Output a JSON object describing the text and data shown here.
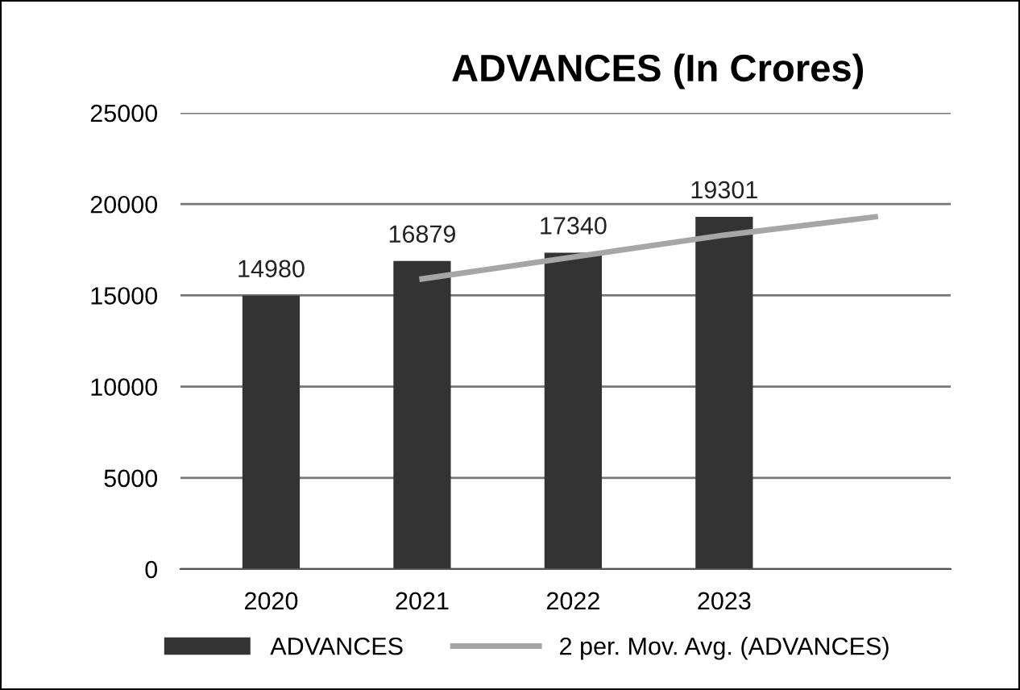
{
  "chart_data": {
    "type": "bar",
    "title": "ADVANCES (In Crores)",
    "categories": [
      "2020",
      "2021",
      "2022",
      "2023",
      null
    ],
    "series": [
      {
        "name": "ADVANCES",
        "color": "#333333",
        "values": [
          14980,
          16879,
          17340,
          19301,
          null
        ],
        "value_labels": [
          "14980",
          "16879",
          "17340",
          "19301",
          null
        ]
      },
      {
        "name": "2 per. Mov. Avg. (ADVANCES)",
        "type": "line",
        "color": "#a6a6a6",
        "values": [
          null,
          15900,
          17100,
          18300,
          19300
        ]
      }
    ],
    "ylim": [
      0,
      25000
    ],
    "yticks": [
      0,
      5000,
      10000,
      15000,
      20000,
      25000
    ],
    "grid": "y",
    "legend": "bottom",
    "marker": "none",
    "line_style": "solid"
  }
}
